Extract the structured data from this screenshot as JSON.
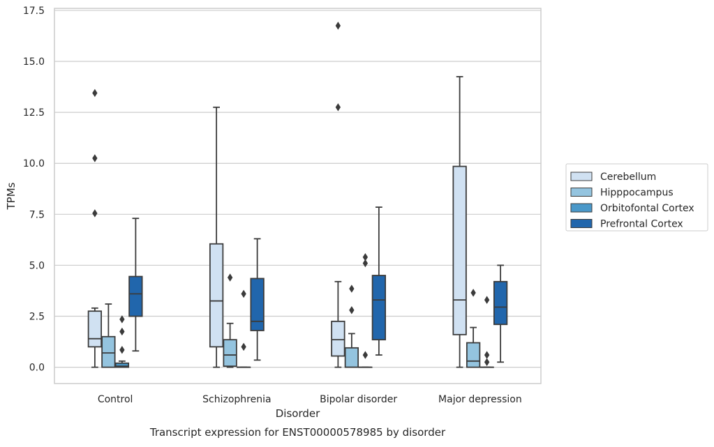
{
  "chart_data": {
    "type": "box",
    "xlabel": "Disorder",
    "ylabel": "TPMs",
    "caption": "Transcript expression for ENST00000578985 by disorder",
    "categories": [
      "Control",
      "Schizophrenia",
      "Bipolar disorder",
      "Major depression"
    ],
    "ylim": [
      -0.8,
      17.6
    ],
    "yticks": [
      0.0,
      2.5,
      5.0,
      7.5,
      10.0,
      12.5,
      15.0,
      17.5
    ],
    "ytick_labels": [
      "0.0",
      "2.5",
      "5.0",
      "7.5",
      "10.0",
      "12.5",
      "15.0",
      "17.5"
    ],
    "grid": "horizontal",
    "legend_position": "right",
    "series": [
      {
        "name": "Cerebellum",
        "color": "#d0e1f2",
        "boxes": [
          {
            "whislo": 0.0,
            "q1": 1.0,
            "med": 1.4,
            "q3": 2.75,
            "whishi": 2.9,
            "fliers": [
              7.55,
              10.25,
              13.45
            ]
          },
          {
            "whislo": 0.0,
            "q1": 1.0,
            "med": 3.25,
            "q3": 6.05,
            "whishi": 12.75,
            "fliers": []
          },
          {
            "whislo": 0.0,
            "q1": 0.55,
            "med": 1.35,
            "q3": 2.25,
            "whishi": 4.2,
            "fliers": [
              12.75,
              16.75
            ]
          },
          {
            "whislo": 0.0,
            "q1": 1.6,
            "med": 3.3,
            "q3": 9.85,
            "whishi": 14.25,
            "fliers": []
          }
        ]
      },
      {
        "name": "Hipppocampus",
        "color": "#94c4df",
        "boxes": [
          {
            "whislo": 0.0,
            "q1": 0.0,
            "med": 0.7,
            "q3": 1.5,
            "whishi": 3.1,
            "fliers": []
          },
          {
            "whislo": 0.0,
            "q1": 0.05,
            "med": 0.6,
            "q3": 1.35,
            "whishi": 2.15,
            "fliers": [
              4.4
            ]
          },
          {
            "whislo": 0.0,
            "q1": 0.0,
            "med": 0.0,
            "q3": 0.95,
            "whishi": 1.65,
            "fliers": [
              2.8,
              3.85
            ]
          },
          {
            "whislo": 0.0,
            "q1": 0.0,
            "med": 0.3,
            "q3": 1.2,
            "whishi": 1.95,
            "fliers": [
              3.65
            ]
          }
        ]
      },
      {
        "name": "Orbitofontal Cortex",
        "color": "#4a98c9",
        "boxes": [
          {
            "whislo": 0.0,
            "q1": 0.0,
            "med": 0.05,
            "q3": 0.2,
            "whishi": 0.3,
            "fliers": [
              0.85,
              1.75,
              2.35
            ]
          },
          {
            "whislo": 0.0,
            "q1": 0.0,
            "med": 0.0,
            "q3": 0.0,
            "whishi": 0.0,
            "fliers": [
              1.0,
              3.6
            ]
          },
          {
            "whislo": 0.0,
            "q1": 0.0,
            "med": 0.0,
            "q3": 0.0,
            "whishi": 0.0,
            "fliers": [
              0.6,
              5.1,
              5.4
            ]
          },
          {
            "whislo": 0.0,
            "q1": 0.0,
            "med": 0.0,
            "q3": 0.0,
            "whishi": 0.0,
            "fliers": [
              0.25,
              0.6,
              3.3
            ]
          }
        ]
      },
      {
        "name": "Prefrontal Cortex",
        "color": "#2166ac",
        "boxes": [
          {
            "whislo": 0.8,
            "q1": 2.5,
            "med": 3.6,
            "q3": 4.45,
            "whishi": 7.3,
            "fliers": []
          },
          {
            "whislo": 0.35,
            "q1": 1.8,
            "med": 2.25,
            "q3": 4.35,
            "whishi": 6.3,
            "fliers": []
          },
          {
            "whislo": 0.6,
            "q1": 1.35,
            "med": 3.3,
            "q3": 4.5,
            "whishi": 7.85,
            "fliers": []
          },
          {
            "whislo": 0.25,
            "q1": 2.1,
            "med": 2.95,
            "q3": 4.2,
            "whishi": 5.0,
            "fliers": []
          }
        ]
      }
    ]
  }
}
